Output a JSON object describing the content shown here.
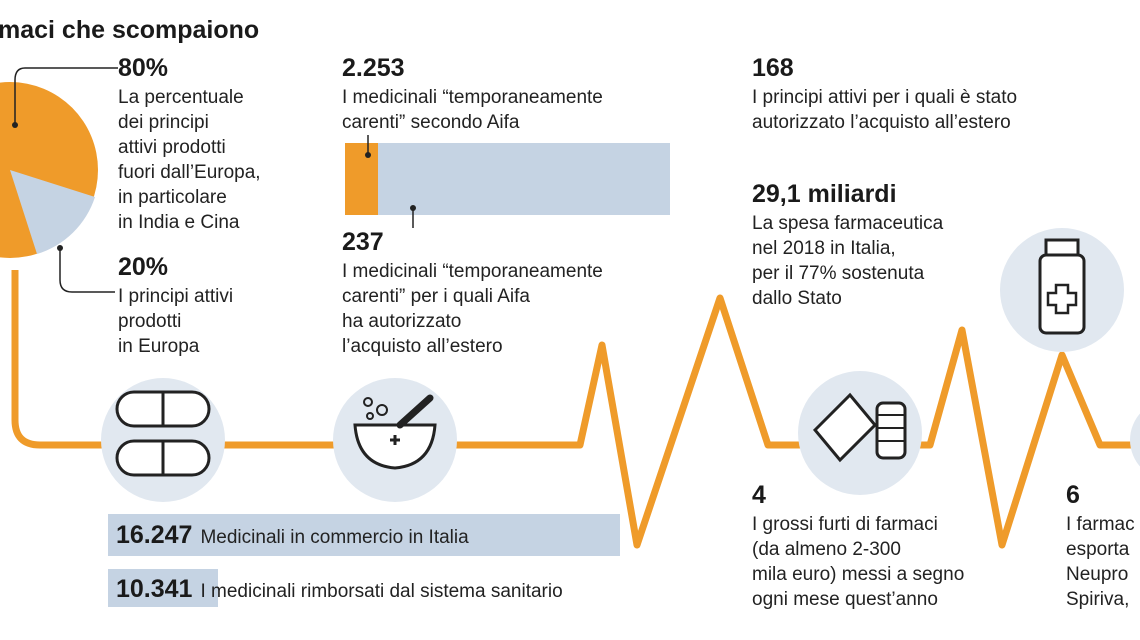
{
  "title": "maci che scompaiono",
  "blocks": [
    {
      "number": "80%",
      "lines": [
        "La percentuale",
        "dei principi",
        "attivi prodotti",
        "fuori dall’Europa,",
        "in particolare",
        "in India e Cina"
      ]
    },
    {
      "number": "20%",
      "lines": [
        "I principi attivi",
        "prodotti",
        "in Europa"
      ]
    },
    {
      "number": "2.253",
      "lines": [
        "I medicinali “temporaneamente",
        "carenti” secondo Aifa"
      ]
    },
    {
      "number": "237",
      "lines": [
        "I medicinali “temporaneamente",
        "carenti” per i quali Aifa",
        "ha autorizzato",
        "l’acquisto all’estero"
      ]
    },
    {
      "number": "168",
      "lines": [
        "I principi attivi per i quali è stato",
        "autorizzato l’acquisto all’estero"
      ]
    },
    {
      "number": "29,1 miliardi",
      "lines": [
        "La spesa farmaceutica",
        "nel 2018 in Italia,",
        "per il 77% sostenuta",
        "dallo Stato"
      ]
    },
    {
      "number": "4",
      "lines": [
        "I grossi furti di farmaci",
        "(da almeno 2-300",
        "mila euro) messi a segno",
        "ogni mese quest’anno"
      ]
    },
    {
      "number": "6",
      "lines": [
        "I farmac",
        "esporta",
        "Neupro",
        "Spiriva,"
      ]
    }
  ],
  "bands": [
    {
      "number": "16.247",
      "text": "Medicinali in commercio in Italia"
    },
    {
      "number": "10.341",
      "text": "I medicinali rimborsati dal sistema sanitario"
    }
  ]
}
